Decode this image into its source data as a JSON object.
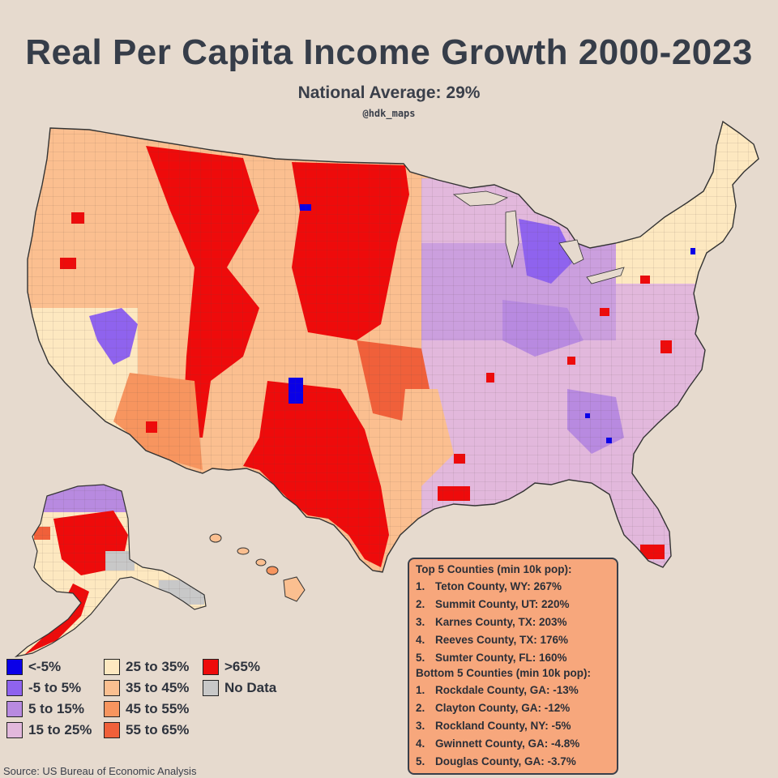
{
  "header": {
    "title": "Real Per Capita Income Growth 2000-2023",
    "subtitle": "National Average: 29%",
    "credit": "@hdk_maps"
  },
  "map": {
    "region": "United States counties",
    "colors": {
      "lt_neg5": "#0a00e8",
      "neg5_5": "#8f63ee",
      "p5_15": "#b88ae0",
      "p15_25": "#e2b8dc",
      "p25_35": "#fde8c0",
      "p35_45": "#fbbf90",
      "p45_55": "#f7955f",
      "p55_65": "#f0603a",
      "gt65": "#ee0b0b",
      "no_data": "#c8c8c8"
    }
  },
  "legend": {
    "items": [
      {
        "label": "<-5%",
        "color": "#0a00e8"
      },
      {
        "label": "-5 to 5%",
        "color": "#8f63ee"
      },
      {
        "label": "5 to 15%",
        "color": "#b88ae0"
      },
      {
        "label": "15 to 25%",
        "color": "#e2b8dc"
      },
      {
        "label": "25 to 35%",
        "color": "#fde8c0"
      },
      {
        "label": "35 to 45%",
        "color": "#fbbf90"
      },
      {
        "label": "45 to 55%",
        "color": "#f7955f"
      },
      {
        "label": "55 to 65%",
        "color": "#f0603a"
      },
      {
        "label": ">65%",
        "color": "#ee0b0b"
      },
      {
        "label": "No Data",
        "color": "#c8c8c8"
      }
    ]
  },
  "rankings": {
    "top_heading": "Top 5 Counties (min 10k pop):",
    "top": [
      {
        "rank": "1.",
        "text": "Teton County, WY: 267%"
      },
      {
        "rank": "2.",
        "text": "Summit County, UT: 220%"
      },
      {
        "rank": "3.",
        "text": "Karnes County, TX: 203%"
      },
      {
        "rank": "4.",
        "text": "Reeves County, TX: 176%"
      },
      {
        "rank": "5.",
        "text": "Sumter County, FL: 160%"
      }
    ],
    "bottom_heading": "Bottom 5 Counties (min 10k pop):",
    "bottom": [
      {
        "rank": "1.",
        "text": "Rockdale County, GA: -13%"
      },
      {
        "rank": "2.",
        "text": "Clayton County, GA: -12%"
      },
      {
        "rank": "3.",
        "text": "Rockland County, NY: -5%"
      },
      {
        "rank": "4.",
        "text": "Gwinnett County, GA: -4.8%"
      },
      {
        "rank": "5.",
        "text": "Douglas County, GA: -3.7%"
      }
    ]
  },
  "source": "Source: US Bureau of Economic Analysis"
}
